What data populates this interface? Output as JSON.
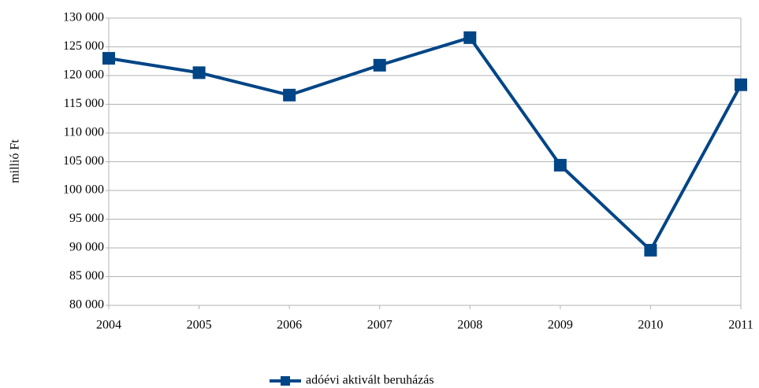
{
  "chart_data": {
    "type": "line",
    "y_label": "millió Ft",
    "categories": [
      "2004",
      "2005",
      "2006",
      "2007",
      "2008",
      "2009",
      "2010",
      "2011"
    ],
    "series": [
      {
        "name": "adóévi aktivált beruházás",
        "color": "#004586",
        "values": [
          123000,
          120500,
          116600,
          121800,
          126600,
          104400,
          89600,
          118400
        ]
      }
    ],
    "ylim": [
      80000,
      130000
    ],
    "yticks": [
      {
        "value": 80000,
        "label": "80 000"
      },
      {
        "value": 85000,
        "label": "85 000"
      },
      {
        "value": 90000,
        "label": "90 000"
      },
      {
        "value": 95000,
        "label": "95 000"
      },
      {
        "value": 100000,
        "label": "100 000"
      },
      {
        "value": 105000,
        "label": "105 000"
      },
      {
        "value": 110000,
        "label": "110 000"
      },
      {
        "value": 115000,
        "label": "115 000"
      },
      {
        "value": 120000,
        "label": "120 000"
      },
      {
        "value": 125000,
        "label": "125 000"
      },
      {
        "value": 130000,
        "label": "130 000"
      }
    ],
    "grid": true,
    "legend": "bottom"
  }
}
